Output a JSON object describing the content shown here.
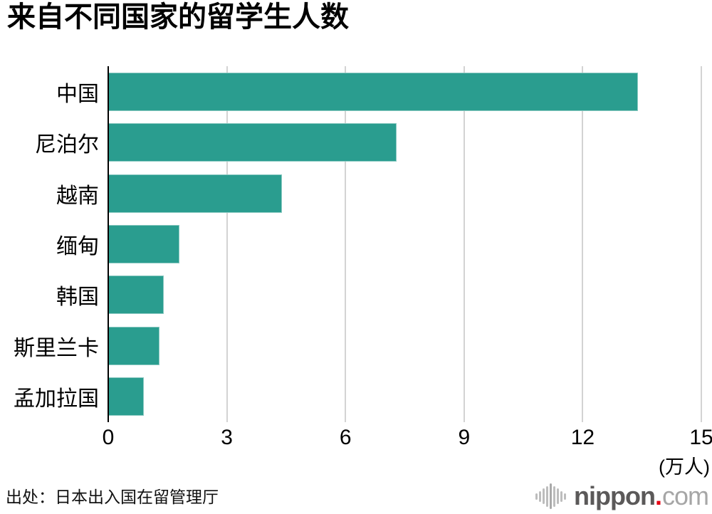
{
  "title": "来自不同国家的留学生人数",
  "source": "出处：日本出入国在留管理厅",
  "logo": {
    "icon": "soundwave-icon",
    "prefix": "nippon",
    "dot": ".",
    "suffix": "com",
    "dot_color": "#e60012"
  },
  "chart_data": {
    "type": "bar",
    "orientation": "horizontal",
    "title": "来自不同国家的留学生人数",
    "categories": [
      "中国",
      "尼泊尔",
      "越南",
      "缅甸",
      "韩国",
      "斯里兰卡",
      "孟加拉国"
    ],
    "values": [
      13.4,
      7.3,
      4.4,
      1.8,
      1.4,
      1.3,
      0.9
    ],
    "unit_label": "(万人)",
    "xlabel": "",
    "ylabel": "",
    "x_ticks": [
      0,
      3,
      6,
      9,
      12,
      15
    ],
    "xlim": [
      0,
      15
    ],
    "grid": true,
    "legend": false,
    "bar_color": "#2a9d8f",
    "gridline_color": "#d3d3d3",
    "axis_color": "#000000"
  }
}
